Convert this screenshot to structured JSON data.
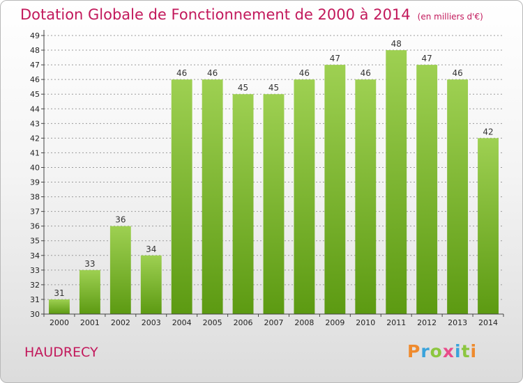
{
  "title": "Dotation Globale de Fonctionnement de 2000 à 2014",
  "subtitle": "(en milliers d'€)",
  "commune": "HAUDRECY",
  "logo": "Proxiti",
  "colors": {
    "title": "#c2185b",
    "bar_top": "#9ed052",
    "bar_bottom": "#5c9a12",
    "logo": [
      "#ef8a2d",
      "#3aa3db",
      "#8cc63f",
      "#e94c8a",
      "#3aa3db",
      "#8cc63f",
      "#ef8a2d"
    ]
  },
  "chart_data": {
    "type": "bar",
    "title": "Dotation Globale de Fonctionnement de 2000 à 2014",
    "subtitle": "(en milliers d'€)",
    "categories": [
      "2000",
      "2001",
      "2002",
      "2003",
      "2004",
      "2005",
      "2006",
      "2007",
      "2008",
      "2009",
      "2010",
      "2011",
      "2012",
      "2013",
      "2014"
    ],
    "values": [
      31,
      33,
      36,
      34,
      46,
      46,
      45,
      45,
      46,
      47,
      46,
      48,
      47,
      46,
      42
    ],
    "ylim": [
      30,
      49
    ],
    "yticks": [
      30,
      31,
      32,
      33,
      34,
      35,
      36,
      37,
      38,
      39,
      40,
      41,
      42,
      43,
      44,
      45,
      46,
      47,
      48,
      49
    ],
    "grid": "horizontal-dashed",
    "legend": "none"
  }
}
